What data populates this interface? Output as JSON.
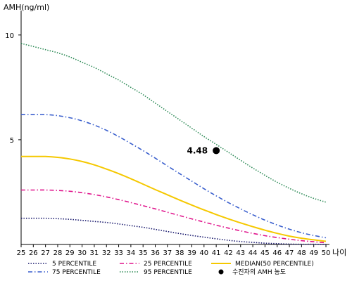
{
  "chart_data": {
    "type": "line",
    "ylabel": "AMH(ng/ml)",
    "xlabel": "나이",
    "x": [
      25,
      26,
      27,
      28,
      29,
      30,
      31,
      32,
      33,
      34,
      35,
      36,
      37,
      38,
      39,
      40,
      41,
      42,
      43,
      44,
      45,
      46,
      47,
      48,
      49,
      50
    ],
    "xlim": [
      25,
      50
    ],
    "ylim": [
      0,
      11
    ],
    "yticks": [
      5,
      10
    ],
    "grid": false,
    "legend_position": "bottom",
    "series": [
      {
        "name": "5 PERCENTILE",
        "color": "#1a1a6e",
        "style": "dotted",
        "values": [
          1.25,
          1.25,
          1.25,
          1.23,
          1.2,
          1.15,
          1.1,
          1.05,
          0.98,
          0.9,
          0.82,
          0.72,
          0.62,
          0.52,
          0.43,
          0.35,
          0.27,
          0.2,
          0.14,
          0.1,
          0.06,
          0.04,
          0.02,
          0.01,
          0.01,
          0.0
        ]
      },
      {
        "name": "25 PERCENTILE",
        "color": "#e0148c",
        "style": "dashdot",
        "values": [
          2.6,
          2.6,
          2.6,
          2.58,
          2.54,
          2.47,
          2.38,
          2.27,
          2.14,
          2.0,
          1.85,
          1.7,
          1.54,
          1.38,
          1.22,
          1.07,
          0.92,
          0.78,
          0.65,
          0.53,
          0.42,
          0.33,
          0.25,
          0.18,
          0.13,
          0.08
        ]
      },
      {
        "name": "MEDIAN(50 PERCENTILE)",
        "color": "#f5c800",
        "style": "solid",
        "values": [
          4.2,
          4.2,
          4.2,
          4.16,
          4.08,
          3.96,
          3.8,
          3.6,
          3.38,
          3.14,
          2.88,
          2.62,
          2.37,
          2.12,
          1.88,
          1.65,
          1.43,
          1.22,
          1.03,
          0.85,
          0.68,
          0.53,
          0.4,
          0.3,
          0.22,
          0.15
        ]
      },
      {
        "name": "75 PERCENTILE",
        "color": "#3a5fcd",
        "style": "dashdot",
        "values": [
          6.2,
          6.2,
          6.2,
          6.15,
          6.05,
          5.9,
          5.7,
          5.45,
          5.15,
          4.82,
          4.48,
          4.12,
          3.75,
          3.38,
          3.02,
          2.66,
          2.32,
          2.0,
          1.7,
          1.42,
          1.16,
          0.93,
          0.73,
          0.56,
          0.43,
          0.32
        ]
      },
      {
        "name": "95 PERCENTILE",
        "color": "#2e8b57",
        "style": "dotted",
        "values": [
          9.6,
          9.45,
          9.3,
          9.15,
          8.95,
          8.7,
          8.45,
          8.15,
          7.85,
          7.5,
          7.15,
          6.75,
          6.35,
          5.95,
          5.55,
          5.15,
          4.78,
          4.4,
          4.02,
          3.65,
          3.3,
          2.97,
          2.68,
          2.42,
          2.2,
          2.02
        ]
      }
    ],
    "patient": {
      "label": "수진자의 AMH 농도",
      "x": 41,
      "y": 4.48,
      "value_label": "4.48"
    }
  }
}
